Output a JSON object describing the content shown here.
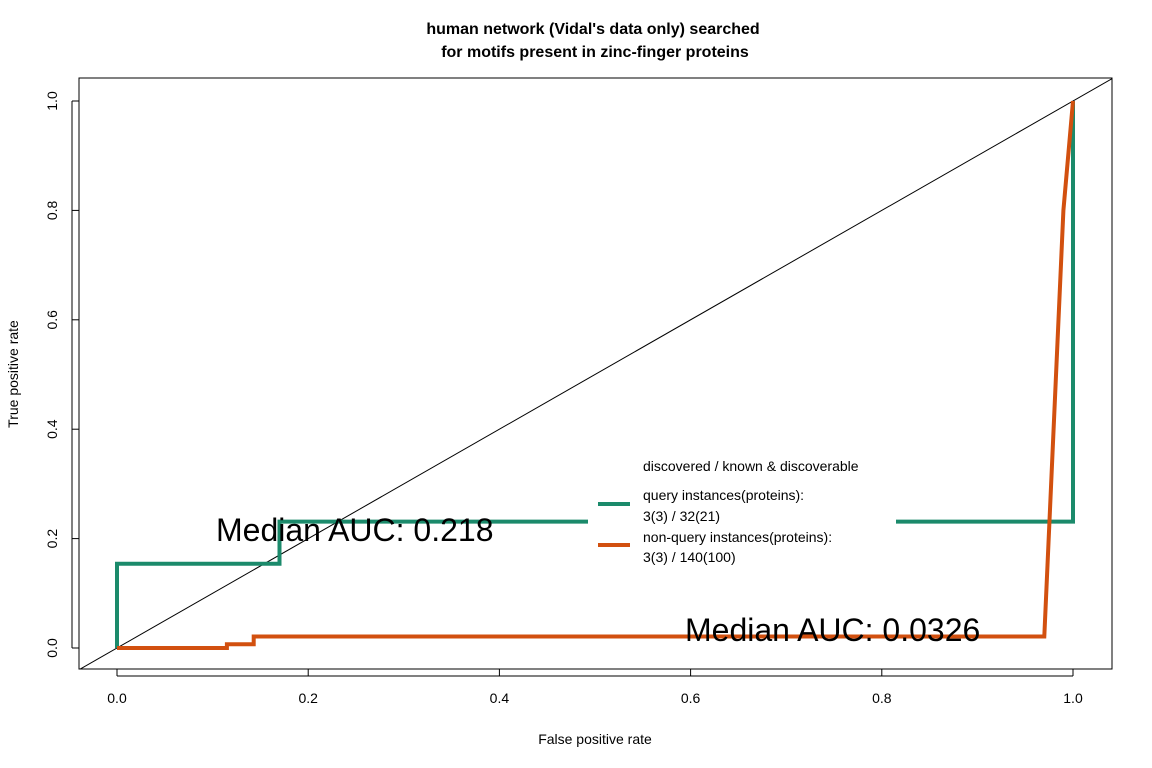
{
  "chart_data": {
    "type": "line",
    "title": [
      "human network (Vidal's data only) searched",
      "for motifs present in zinc-finger proteins"
    ],
    "xlabel": "False positive rate",
    "ylabel": "True positive rate",
    "xlim": [
      0,
      1
    ],
    "ylim": [
      0,
      1
    ],
    "x_ticks": [
      "0.0",
      "0.2",
      "0.4",
      "0.6",
      "0.8",
      "1.0"
    ],
    "y_ticks": [
      "0.0",
      "0.2",
      "0.4",
      "0.6",
      "0.8",
      "1.0"
    ],
    "grid": false,
    "diagonal": true,
    "series": [
      {
        "name": "query instances(proteins):",
        "detail": "3(3) / 32(21)",
        "color": "#1b8a6b",
        "x": [
          0,
          0,
          0.17,
          0.17,
          1.0,
          1.0
        ],
        "y": [
          0,
          0.154,
          0.154,
          0.231,
          0.231,
          1.0
        ]
      },
      {
        "name": "non-query instances(proteins):",
        "detail": "3(3) / 140(100)",
        "color": "#d2500f",
        "x": [
          0,
          0.115,
          0.115,
          0.143,
          0.143,
          0.97,
          0.99,
          1.0
        ],
        "y": [
          0,
          0,
          0.007,
          0.007,
          0.021,
          0.021,
          0.8,
          1.0
        ]
      }
    ],
    "legend": {
      "title": "discovered / known & discoverable",
      "placement": "center-right"
    },
    "annotations": [
      "Median AUC: 0.218",
      "Median AUC: 0.0326"
    ]
  }
}
